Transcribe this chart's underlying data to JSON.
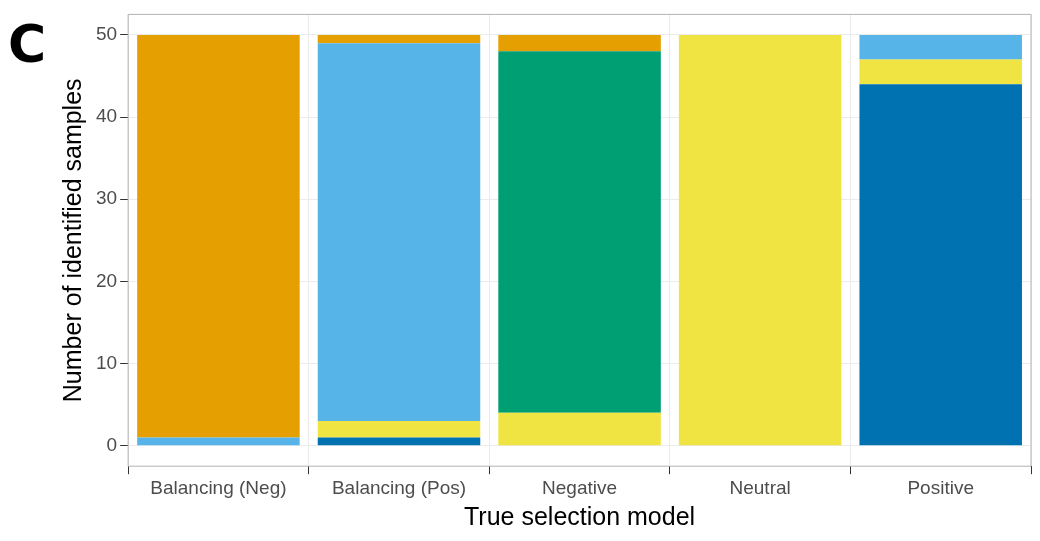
{
  "chart_data": {
    "type": "bar",
    "stacked": true,
    "xlabel": "True selection model",
    "ylabel": "Number of identified samples",
    "categories": [
      "Balancing (Neg)",
      "Balancing (Pos)",
      "Negative",
      "Neutral",
      "Positive"
    ],
    "series": [
      {
        "color": "#0072b2",
        "values": [
          0,
          1,
          0,
          0,
          44
        ]
      },
      {
        "color": "#f0e442",
        "values": [
          0,
          2,
          4,
          50,
          3
        ]
      },
      {
        "color": "#009e73",
        "values": [
          0,
          0,
          44,
          0,
          0
        ]
      },
      {
        "color": "#56b4e9",
        "values": [
          1,
          46,
          0,
          0,
          3
        ]
      },
      {
        "color": "#e69f00",
        "values": [
          49,
          1,
          2,
          0,
          0
        ]
      }
    ],
    "ylim": [
      -2.5,
      52.5
    ],
    "yticks": [
      0,
      10,
      20,
      30,
      40,
      50
    ],
    "grid": true,
    "legend": false,
    "annotations": [
      "C"
    ]
  }
}
